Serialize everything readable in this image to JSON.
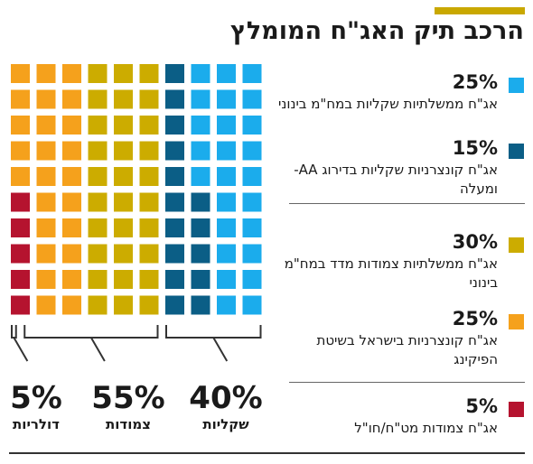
{
  "title": "הרכב תיק האג\"ח המומלץ",
  "colors": {
    "accent": "#c9a800",
    "bracket": "#333333"
  },
  "chart_data": {
    "type": "waffle",
    "grid": {
      "rows": 10,
      "cols": 10,
      "unit_percent": 1
    },
    "segments": [
      {
        "pct": "25%",
        "value": 25,
        "color": "#1bacec",
        "label": "אג\"ח ממשלתיות שקליות במח\"מ בינוני"
      },
      {
        "pct": "15%",
        "value": 15,
        "color": "#0b5e86",
        "label": "אג\"ח קונצרניות שקליות בדירוג AA- ומעלה"
      },
      {
        "pct": "30%",
        "value": 30,
        "color": "#ccac00",
        "label": "אג\"ח ממשלתיות צמודות מדד במח\"מ בינוני"
      },
      {
        "pct": "25%",
        "value": 25,
        "color": "#f5a11c",
        "label": "אג\"ח קונצרניות בישראל בשיטת הפיקינג"
      },
      {
        "pct": "5%",
        "value": 5,
        "color": "#b5132f",
        "label": "אג\"ח צמודות מט\"ח/חו\"ל"
      }
    ],
    "groups": [
      {
        "pct": "5%",
        "value": 5,
        "label": "דולריות"
      },
      {
        "pct": "55%",
        "value": 55,
        "label": "צמודות"
      },
      {
        "pct": "40%",
        "value": 40,
        "label": "שקליות"
      }
    ]
  }
}
